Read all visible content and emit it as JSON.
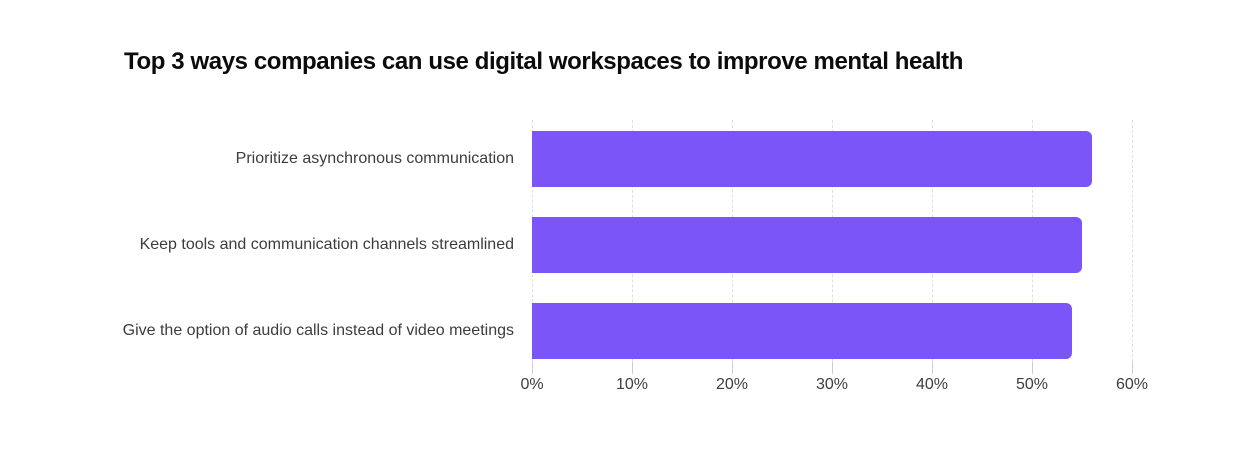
{
  "page": {
    "background": "#FFFFFF"
  },
  "chart_data": {
    "type": "bar",
    "orientation": "horizontal",
    "title": "Top 3 ways companies can use digital workspaces to improve mental health",
    "categories": [
      "Prioritize asynchronous communication",
      "Keep tools and communication channels streamlined",
      "Give the option of audio calls instead of video meetings"
    ],
    "values": [
      56,
      55,
      54
    ],
    "value_suffix": "%",
    "xlabel": "",
    "ylabel": "",
    "xlim": [
      0,
      60
    ],
    "tick_values": [
      0,
      10,
      20,
      30,
      40,
      50,
      60
    ],
    "tick_labels": [
      "0%",
      "10%",
      "20%",
      "30%",
      "40%",
      "50%",
      "60%"
    ],
    "grid": "vertical-dashed",
    "legend_position": "none",
    "colors": {
      "bar": "#7B55F7",
      "title": "#0B0B0B",
      "category_label": "#3D3D3D",
      "tick_label": "#3D3D3D",
      "gridline": "#DFDFDF",
      "tick_mark": "#CCCCCC",
      "background": "#FFFFFF"
    }
  }
}
